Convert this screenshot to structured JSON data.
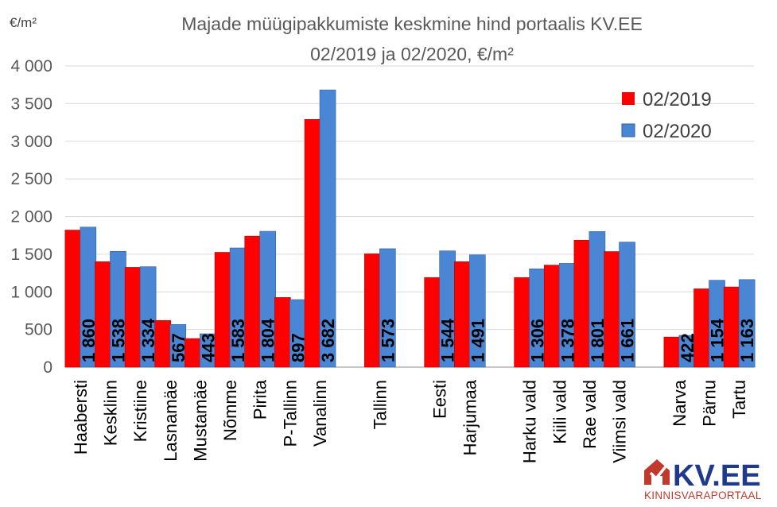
{
  "chart_data": {
    "type": "bar",
    "title_line1": "Majade müügipakkumiste keskmine hind portaalis KV.EE",
    "title_line2": "02/2019 ja 02/2020, €/m²",
    "ylabel": "€/m²",
    "ylim": [
      0,
      4000
    ],
    "yticks": [
      0,
      500,
      1000,
      1500,
      2000,
      2500,
      3000,
      3500,
      4000
    ],
    "ytick_labels": [
      "0",
      "500",
      "1 000",
      "1 500",
      "2 000",
      "2 500",
      "3 000",
      "3 500",
      "4 000"
    ],
    "grid": true,
    "legend_position": "top-right",
    "categories": [
      "Haabersti",
      "Kesklinn",
      "Kristiine",
      "Lasnamäe",
      "Mustamäe",
      "Nõmme",
      "Pirita",
      "P-Tallinn",
      "Vanalinn",
      "",
      "Tallinn",
      "",
      "Eesti",
      "Harjumaa",
      "",
      "Harku vald",
      "Kiili vald",
      "Rae vald",
      "Viimsi vald",
      "",
      "Narva",
      "Pärnu",
      "Tartu"
    ],
    "series": [
      {
        "name": "02/2019",
        "color": "#ff0000",
        "values": [
          1820,
          1400,
          1325,
          620,
          380,
          1525,
          1740,
          925,
          3290,
          null,
          1505,
          null,
          1190,
          1400,
          null,
          1190,
          1355,
          1685,
          1535,
          null,
          400,
          1040,
          1065
        ]
      },
      {
        "name": "02/2020",
        "color": "#4a86d4",
        "values": [
          1860,
          1538,
          1334,
          567,
          443,
          1583,
          1804,
          897,
          3682,
          null,
          1573,
          null,
          1544,
          1491,
          null,
          1306,
          1378,
          1801,
          1661,
          null,
          422,
          1154,
          1163
        ],
        "data_labels": [
          "1 860",
          "1 538",
          "1 334",
          "567",
          "443",
          "1 583",
          "1 804",
          "897",
          "3 682",
          "",
          "1 573",
          "",
          "1 544",
          "1 491",
          "",
          "1 306",
          "1 378",
          "1 801",
          "1 661",
          "",
          "422",
          "1 154",
          "1 163"
        ]
      }
    ]
  },
  "logo": {
    "main": "KV.EE",
    "sub": "KINNISVARAPORTAAL",
    "brand_color": "#1f3a8a",
    "accent_color": "#c0392b"
  }
}
